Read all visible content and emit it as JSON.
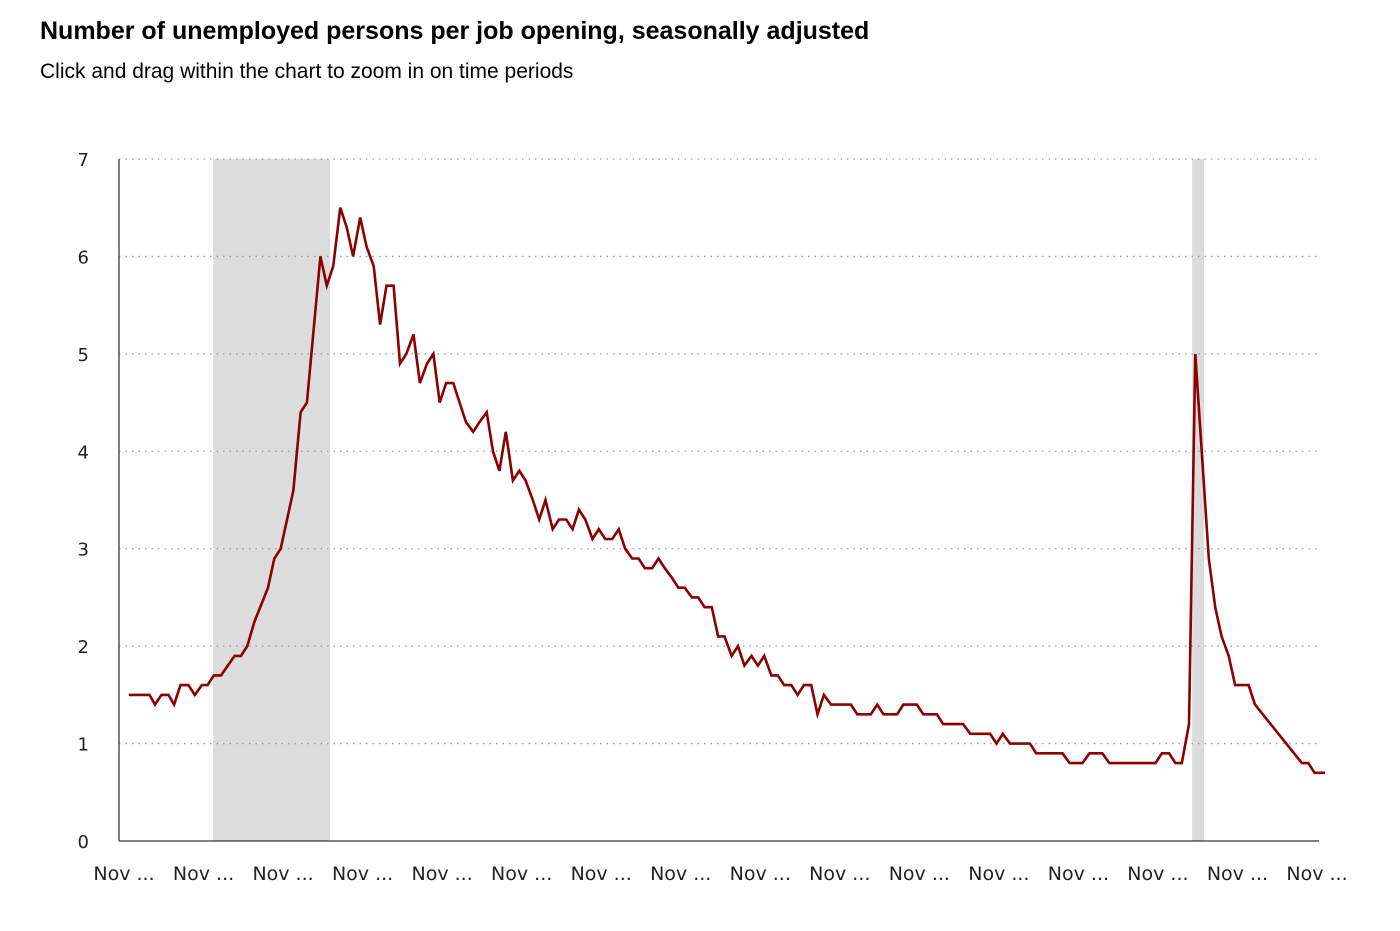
{
  "title": "Number of unemployed persons per job opening, seasonally adjusted",
  "subtitle": "Click and drag within the chart to zoom in on time periods",
  "chart_data": {
    "type": "line",
    "title": "Number of unemployed persons per job opening, seasonally adjusted",
    "xlabel": "",
    "ylabel": "",
    "ylim": [
      0,
      7
    ],
    "y_ticks": [
      "0",
      "1",
      "2",
      "3",
      "4",
      "5",
      "6",
      "7"
    ],
    "x_tick_labels": [
      "Nov ...",
      "Nov ...",
      "Nov ...",
      "Nov ...",
      "Nov ...",
      "Nov ...",
      "Nov ...",
      "Nov ...",
      "Nov ...",
      "Nov ...",
      "Nov ...",
      "Nov ...",
      "Nov ...",
      "Nov ...",
      "Nov ...",
      "Nov ..."
    ],
    "x_range": [
      0,
      15
    ],
    "grid": true,
    "grid_style": "dotted horizontal",
    "line_color": "#8b0000",
    "shade_color": "#dcdcdc",
    "recession_shading": [
      [
        1.12,
        2.59
      ],
      [
        13.43,
        13.58
      ]
    ],
    "series": [
      {
        "values": [
          [
            0.06,
            1.5
          ],
          [
            0.32,
            1.5
          ],
          [
            0.39,
            1.4
          ],
          [
            0.47,
            1.5
          ],
          [
            0.56,
            1.5
          ],
          [
            0.63,
            1.4
          ],
          [
            0.71,
            1.6
          ],
          [
            0.81,
            1.6
          ],
          [
            0.89,
            1.5
          ],
          [
            0.98,
            1.6
          ],
          [
            1.05,
            1.6
          ],
          [
            1.13,
            1.7
          ],
          [
            1.22,
            1.7
          ],
          [
            1.39,
            1.9
          ],
          [
            1.47,
            1.9
          ],
          [
            1.55,
            2.0
          ],
          [
            1.64,
            2.25
          ],
          [
            1.81,
            2.6
          ],
          [
            1.89,
            2.9
          ],
          [
            1.97,
            3.0
          ],
          [
            2.13,
            3.6
          ],
          [
            2.22,
            4.4
          ],
          [
            2.3,
            4.5
          ],
          [
            2.39,
            5.3
          ],
          [
            2.47,
            6.0
          ],
          [
            2.55,
            5.7
          ],
          [
            2.63,
            5.9
          ],
          [
            2.72,
            6.5
          ],
          [
            2.8,
            6.3
          ],
          [
            2.88,
            6.0
          ],
          [
            2.97,
            6.4
          ],
          [
            3.05,
            6.1
          ],
          [
            3.14,
            5.9
          ],
          [
            3.22,
            5.3
          ],
          [
            3.3,
            5.7
          ],
          [
            3.39,
            5.7
          ],
          [
            3.47,
            4.9
          ],
          [
            3.55,
            5.0
          ],
          [
            3.64,
            5.2
          ],
          [
            3.72,
            4.7
          ],
          [
            3.81,
            4.9
          ],
          [
            3.89,
            5.0
          ],
          [
            3.97,
            4.5
          ],
          [
            4.05,
            4.7
          ],
          [
            4.14,
            4.7
          ],
          [
            4.22,
            4.5
          ],
          [
            4.3,
            4.3
          ],
          [
            4.39,
            4.2
          ],
          [
            4.47,
            4.3
          ],
          [
            4.56,
            4.4
          ],
          [
            4.64,
            4.0
          ],
          [
            4.72,
            3.8
          ],
          [
            4.8,
            4.2
          ],
          [
            4.89,
            3.7
          ],
          [
            4.97,
            3.8
          ],
          [
            5.05,
            3.7
          ],
          [
            5.14,
            3.5
          ],
          [
            5.22,
            3.3
          ],
          [
            5.3,
            3.5
          ],
          [
            5.39,
            3.2
          ],
          [
            5.47,
            3.3
          ],
          [
            5.56,
            3.3
          ],
          [
            5.64,
            3.2
          ],
          [
            5.72,
            3.4
          ],
          [
            5.8,
            3.3
          ],
          [
            5.89,
            3.1
          ],
          [
            5.97,
            3.2
          ],
          [
            6.05,
            3.1
          ],
          [
            6.14,
            3.1
          ],
          [
            6.22,
            3.2
          ],
          [
            6.3,
            3.0
          ],
          [
            6.39,
            2.9
          ],
          [
            6.47,
            2.9
          ],
          [
            6.55,
            2.8
          ],
          [
            6.64,
            2.8
          ],
          [
            6.72,
            2.9
          ],
          [
            6.8,
            2.8
          ],
          [
            6.89,
            2.7
          ],
          [
            6.97,
            2.6
          ],
          [
            7.05,
            2.6
          ],
          [
            7.14,
            2.5
          ],
          [
            7.22,
            2.5
          ],
          [
            7.3,
            2.4
          ],
          [
            7.39,
            2.4
          ],
          [
            7.47,
            2.1
          ],
          [
            7.55,
            2.1
          ],
          [
            7.64,
            1.9
          ],
          [
            7.72,
            2.0
          ],
          [
            7.8,
            1.8
          ],
          [
            7.89,
            1.9
          ],
          [
            7.97,
            1.8
          ],
          [
            8.05,
            1.9
          ],
          [
            8.14,
            1.7
          ],
          [
            8.22,
            1.7
          ],
          [
            8.3,
            1.6
          ],
          [
            8.39,
            1.6
          ],
          [
            8.47,
            1.5
          ],
          [
            8.55,
            1.6
          ],
          [
            8.64,
            1.6
          ],
          [
            8.72,
            1.3
          ],
          [
            8.8,
            1.5
          ],
          [
            8.89,
            1.4
          ],
          [
            8.97,
            1.4
          ],
          [
            9.05,
            1.4
          ],
          [
            9.14,
            1.4
          ],
          [
            9.22,
            1.3
          ],
          [
            9.39,
            1.3
          ],
          [
            9.47,
            1.4
          ],
          [
            9.55,
            1.3
          ],
          [
            9.72,
            1.3
          ],
          [
            9.8,
            1.4
          ],
          [
            9.97,
            1.4
          ],
          [
            10.05,
            1.3
          ],
          [
            10.22,
            1.3
          ],
          [
            10.3,
            1.2
          ],
          [
            10.55,
            1.2
          ],
          [
            10.64,
            1.1
          ],
          [
            10.89,
            1.1
          ],
          [
            10.97,
            1.0
          ],
          [
            11.05,
            1.1
          ],
          [
            11.14,
            1.0
          ],
          [
            11.39,
            1.0
          ],
          [
            11.47,
            0.9
          ],
          [
            11.8,
            0.9
          ],
          [
            11.89,
            0.8
          ],
          [
            12.05,
            0.8
          ],
          [
            12.14,
            0.9
          ],
          [
            12.3,
            0.9
          ],
          [
            12.39,
            0.8
          ],
          [
            12.97,
            0.8
          ],
          [
            13.05,
            0.9
          ],
          [
            13.14,
            0.9
          ],
          [
            13.22,
            0.8
          ],
          [
            13.3,
            0.8
          ],
          [
            13.39,
            1.2
          ],
          [
            13.47,
            5.0
          ],
          [
            13.64,
            2.9
          ],
          [
            13.72,
            2.4
          ],
          [
            13.8,
            2.1
          ],
          [
            13.89,
            1.9
          ],
          [
            13.97,
            1.6
          ],
          [
            14.14,
            1.6
          ],
          [
            14.22,
            1.4
          ],
          [
            14.81,
            0.8
          ],
          [
            14.89,
            0.8
          ],
          [
            14.97,
            0.7
          ],
          [
            15.1,
            0.7
          ]
        ]
      }
    ]
  }
}
